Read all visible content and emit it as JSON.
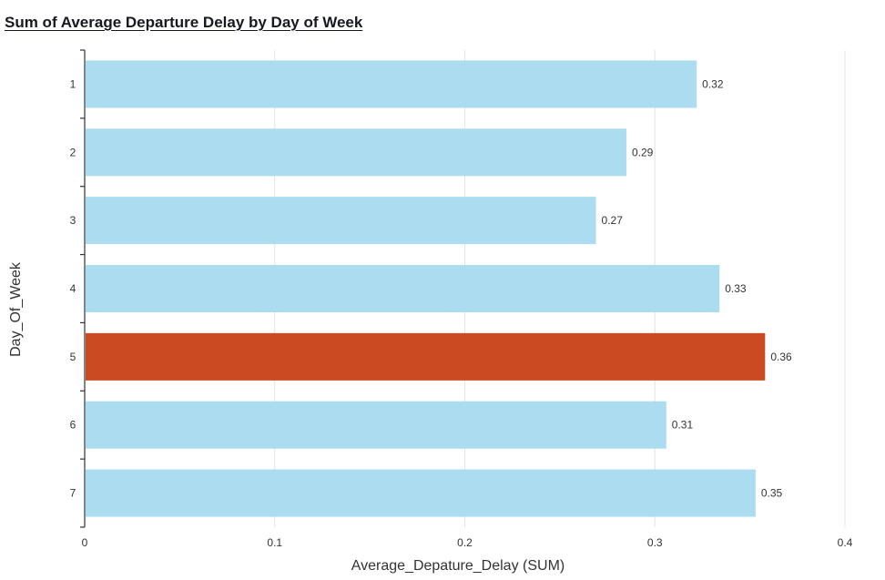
{
  "chart_data": {
    "type": "bar",
    "orientation": "horizontal",
    "title": "Sum of Average Departure Delay by Day of Week",
    "xlabel": "Average_Depature_Delay (SUM)",
    "ylabel": "Day_Of_Week",
    "categories": [
      "1",
      "2",
      "3",
      "4",
      "5",
      "6",
      "7"
    ],
    "values": [
      0.322,
      0.285,
      0.269,
      0.334,
      0.358,
      0.306,
      0.353
    ],
    "value_labels": [
      "0.32",
      "0.29",
      "0.27",
      "0.33",
      "0.36",
      "0.31",
      "0.35"
    ],
    "highlighted_index": 4,
    "xlim": [
      0,
      0.4
    ],
    "xticks": [
      "0",
      "0.1",
      "0.2",
      "0.3",
      "0.4"
    ],
    "grid": "vertical",
    "colors": {
      "bar": "#abdcf0",
      "highlight": "#cc4a22"
    }
  }
}
